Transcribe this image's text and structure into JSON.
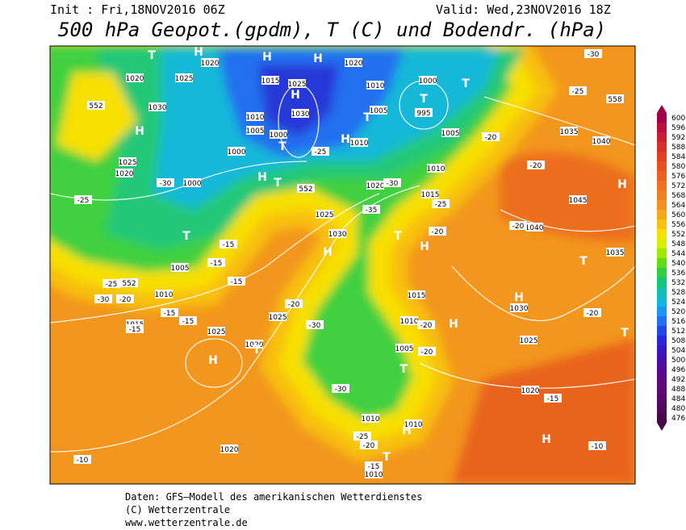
{
  "header": {
    "init": "Init : Fri,18NOV2016 06Z",
    "valid": "Valid: Wed,23NOV2016 18Z",
    "title": "500 hPa Geopot.(gpdm), T (C) und Bodendr. (hPa)"
  },
  "legend": {
    "ticks": [
      600,
      596,
      592,
      588,
      584,
      580,
      576,
      572,
      568,
      564,
      560,
      556,
      552,
      548,
      544,
      540,
      536,
      532,
      528,
      524,
      520,
      516,
      512,
      508,
      504,
      500,
      496,
      492,
      488,
      484,
      480,
      476
    ],
    "colors": [
      "#a0004a",
      "#b8103c",
      "#c82030",
      "#d83028",
      "#e04020",
      "#e85020",
      "#ec6020",
      "#f07020",
      "#f28020",
      "#f49020",
      "#f6a818",
      "#f8c010",
      "#f8e000",
      "#d8f000",
      "#a0e800",
      "#60dc10",
      "#30d040",
      "#10c878",
      "#10c0b0",
      "#10b8e0",
      "#1898f0",
      "#2070f0",
      "#2048e8",
      "#2828d8",
      "#3818c0",
      "#4810a8",
      "#580898",
      "#600888",
      "#600878",
      "#580868",
      "#500858",
      "#480848"
    ]
  },
  "map_labels": [
    "1020",
    "1025",
    "1030",
    "1025",
    "1020",
    "1000",
    "1005",
    "1010",
    "1015",
    "1025",
    "1020",
    "1025",
    "1030",
    "1025",
    "1020",
    "1015",
    "1010",
    "1005",
    "1000",
    "995",
    "1005",
    "1010",
    "1020",
    "1010",
    "1015",
    "1025",
    "1030",
    "1010",
    "1005",
    "1000",
    "1000",
    "1015",
    "1010",
    "1005",
    "1010",
    "1010",
    "1020",
    "1010",
    "1035",
    "1040",
    "1045",
    "1040",
    "1035",
    "1030",
    "1025",
    "1020",
    "1020",
    "-25",
    "-30",
    "-15",
    "-15",
    "-15",
    "-25",
    "-30",
    "-20",
    "-15",
    "-15",
    "-15",
    "-20",
    "-30",
    "-30",
    "-25",
    "-20",
    "-15",
    "-20",
    "-20",
    "-20",
    "-20",
    "-20",
    "-20",
    "-15",
    "-10",
    "-10",
    "-25",
    "-30",
    "-20",
    "-25",
    "-30",
    "-35",
    "-25",
    "552",
    "552",
    "552",
    "558"
  ],
  "markers": [
    "T",
    "H",
    "H",
    "H",
    "H",
    "T",
    "T",
    "T",
    "H",
    "T",
    "H",
    "H",
    "T",
    "T",
    "H",
    "T",
    "H",
    "H",
    "T",
    "H",
    "H",
    "T",
    "T",
    "H",
    "T",
    "H",
    "T",
    "H"
  ],
  "footer": [
    "Daten: GFS—Modell des amerikanischen Wetterdienstes",
    "(C) Wetterzentrale",
    "www.wetterzentrale.de"
  ]
}
